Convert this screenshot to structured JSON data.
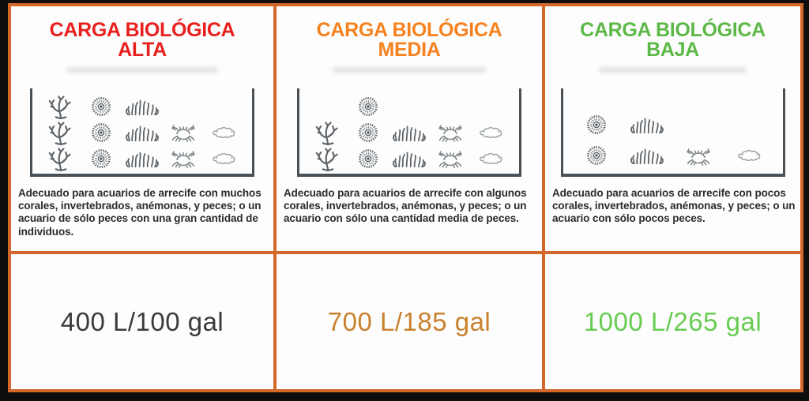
{
  "page": {
    "background_color": "#0e0e0e",
    "frame_border_color": "#d4682a",
    "panel_background": "#fdfdfd",
    "tank_stroke_color": "#4a5156"
  },
  "columns": [
    {
      "id": "alta",
      "title_line1": "CARGA BIOLÓGICA",
      "title_line2": "ALTA",
      "title_color": "#e8201d",
      "description": "Adecuado para acuarios de arrecife con muchos corales, invertebrados, anémonas, y peces; o un acuario de sólo peces con una gran cantidad de individuos.",
      "volume": "400 L/100 gal",
      "volume_color": "#3b3b3b",
      "tank": {
        "cols": 5,
        "rows": [
          [
            "branching-coral",
            "disc-coral",
            "bush-coral",
            null,
            null
          ],
          [
            "branching-coral",
            "disc-coral",
            "bush-coral",
            "crab",
            "fish"
          ],
          [
            "branching-coral",
            "disc-coral",
            "bush-coral",
            "crab",
            "fish"
          ]
        ]
      }
    },
    {
      "id": "media",
      "title_line1": "CARGA BIOLÓGICA",
      "title_line2": "MEDIA",
      "title_color": "#f5821f",
      "description": "Adecuado para acuarios de arrecife con algunos corales, invertebrados, anémonas, y peces; o un acuario con sólo una cantidad media de peces.",
      "volume": "700 L/185 gal",
      "volume_color": "#c9812e",
      "tank": {
        "cols": 5,
        "rows": [
          [
            null,
            "disc-coral",
            null,
            null,
            null
          ],
          [
            "branching-coral",
            "disc-coral",
            "bush-coral",
            "crab",
            "fish"
          ],
          [
            "branching-coral",
            "disc-coral",
            "bush-coral",
            "crab",
            "fish"
          ]
        ]
      }
    },
    {
      "id": "baja",
      "title_line1": "CARGA BIOLÓGICA",
      "title_line2": "BAJA",
      "title_color": "#5cb947",
      "description": "Adecuado para acuarios de arrecife con pocos corales, invertebrados, anémonas, y peces; o un acuario con sólo pocos peces.",
      "volume": "1000 L/265 gal",
      "volume_color": "#67cc51",
      "tank": {
        "cols": 4,
        "rows": [
          [
            "disc-coral",
            "bush-coral",
            null,
            null
          ],
          [
            "disc-coral",
            "bush-coral",
            "crab",
            "fish"
          ]
        ]
      }
    }
  ]
}
